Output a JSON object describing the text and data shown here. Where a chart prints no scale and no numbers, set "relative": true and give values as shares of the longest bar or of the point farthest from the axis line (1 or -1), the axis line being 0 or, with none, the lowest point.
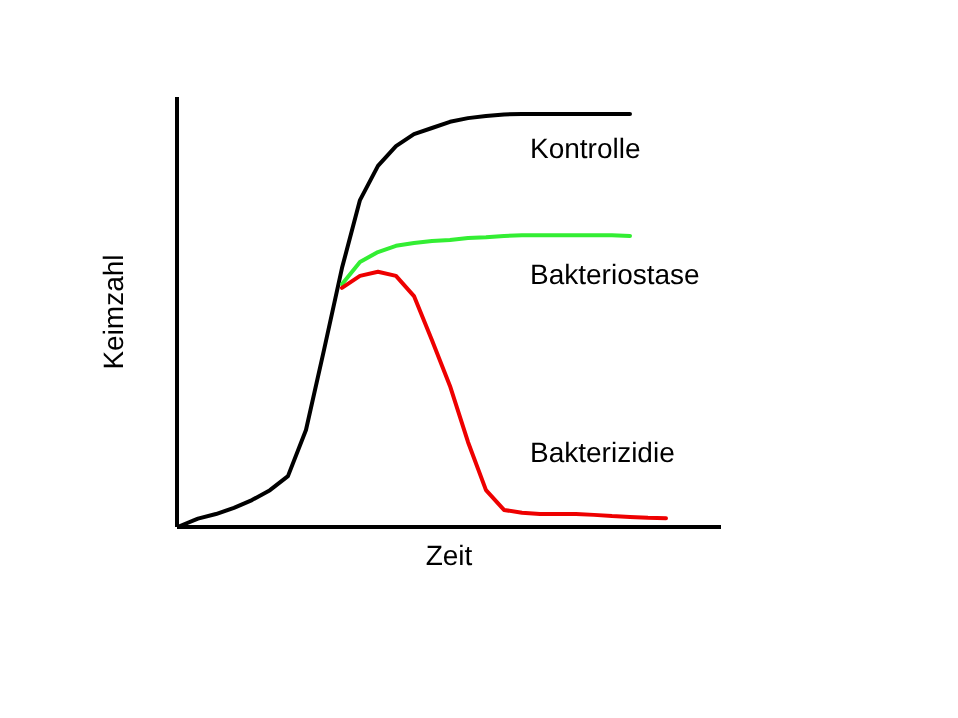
{
  "chart_data": {
    "type": "line",
    "relative": true,
    "xlabel": "Zeit",
    "ylabel": "Keimzahl",
    "marker": "none",
    "line_style": "solid",
    "categories": [
      null,
      null,
      null,
      null,
      null,
      null,
      null,
      null,
      null,
      null,
      null,
      null,
      null,
      null,
      null,
      null,
      null,
      null,
      null,
      null,
      null,
      null,
      null,
      null,
      null,
      null,
      null,
      null
    ],
    "series": [
      {
        "name": "Kontrolle",
        "color": "#000000",
        "values": [
          0,
          0.018,
          0.029,
          0.044,
          0.063,
          0.087,
          0.121,
          0.233,
          0.427,
          0.626,
          0.791,
          0.874,
          0.922,
          0.951,
          0.966,
          0.981,
          0.99,
          0.995,
          0.999,
          1,
          1,
          1,
          1,
          1,
          1,
          1,
          null,
          null
        ]
      },
      {
        "name": "Bakteriostase",
        "color": "#33ee33",
        "values": [
          null,
          null,
          null,
          null,
          null,
          null,
          null,
          null,
          null,
          0.587,
          0.641,
          0.665,
          0.68,
          0.687,
          0.692,
          0.694,
          0.699,
          0.701,
          0.704,
          0.706,
          0.706,
          0.706,
          0.706,
          0.706,
          0.706,
          0.704,
          null,
          null
        ]
      },
      {
        "name": "Bakterizidie",
        "color": "#ee0000",
        "values": [
          null,
          null,
          null,
          null,
          null,
          null,
          null,
          null,
          null,
          0.578,
          0.607,
          0.617,
          0.607,
          0.558,
          0.451,
          0.34,
          0.204,
          0.087,
          0.039,
          0.032,
          0.029,
          0.029,
          0.029,
          0.027,
          0.024,
          0.022,
          0.02,
          0.019
        ]
      }
    ]
  }
}
